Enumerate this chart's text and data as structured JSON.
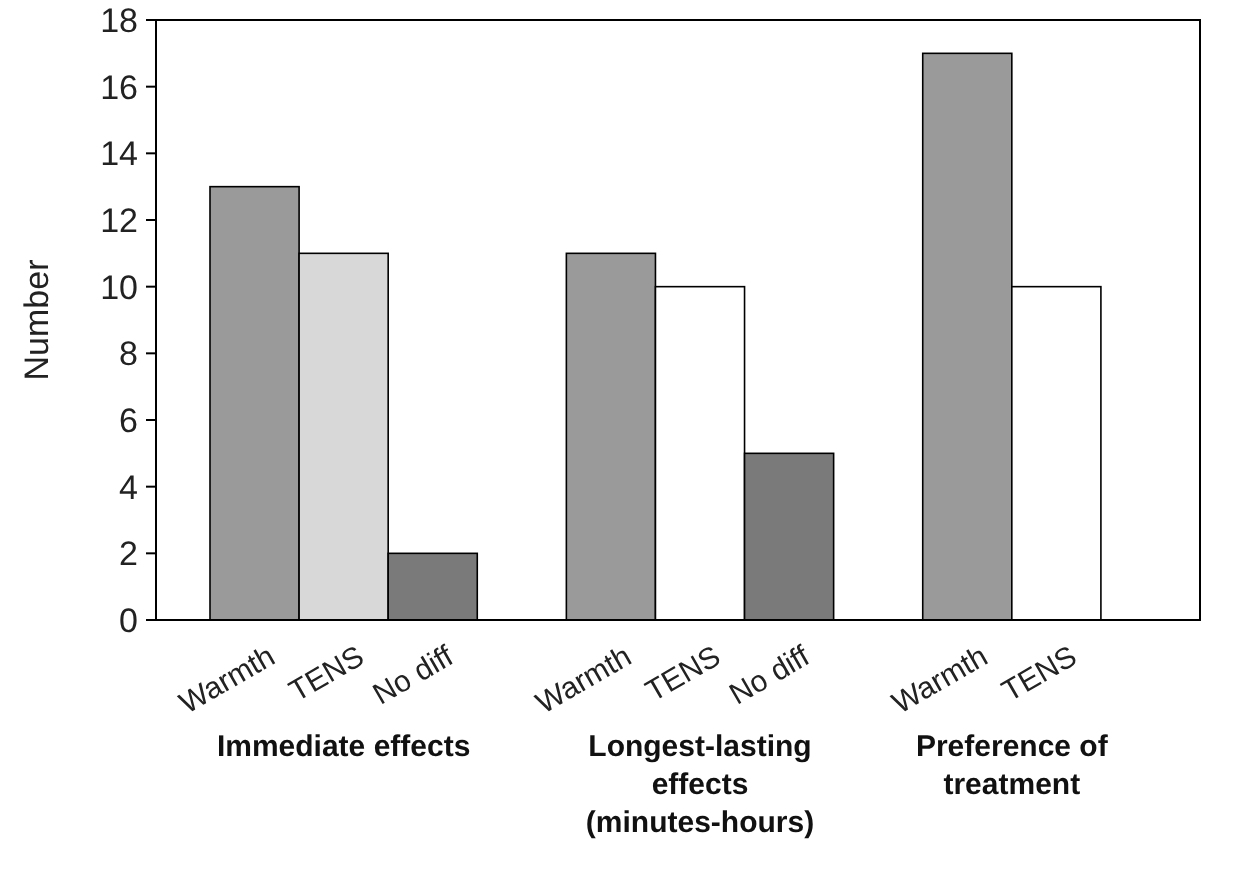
{
  "chart_data": {
    "type": "bar",
    "ylabel": "Number",
    "categories": [
      "Warmth",
      "TENS",
      "No diff",
      null,
      "Warmth",
      "TENS",
      "No diff",
      null,
      "Warmth",
      "TENS",
      null
    ],
    "values": [
      13,
      11,
      2,
      null,
      11,
      10,
      5,
      null,
      17,
      10,
      null
    ],
    "colors": [
      "#9a9a9a",
      "#d8d8d8",
      "#7a7a7a",
      null,
      "#9a9a9a",
      "#ffffff",
      "#7a7a7a",
      null,
      "#9a9a9a",
      "#ffffff",
      null
    ],
    "ylim": [
      0,
      18
    ],
    "yticks": [
      0,
      2,
      4,
      6,
      8,
      10,
      12,
      14,
      16,
      18
    ],
    "grid": false,
    "annotations": [
      "Immediate effects",
      "Longest-lasting effects (minutes-hours)",
      "Preference of treatment"
    ]
  }
}
